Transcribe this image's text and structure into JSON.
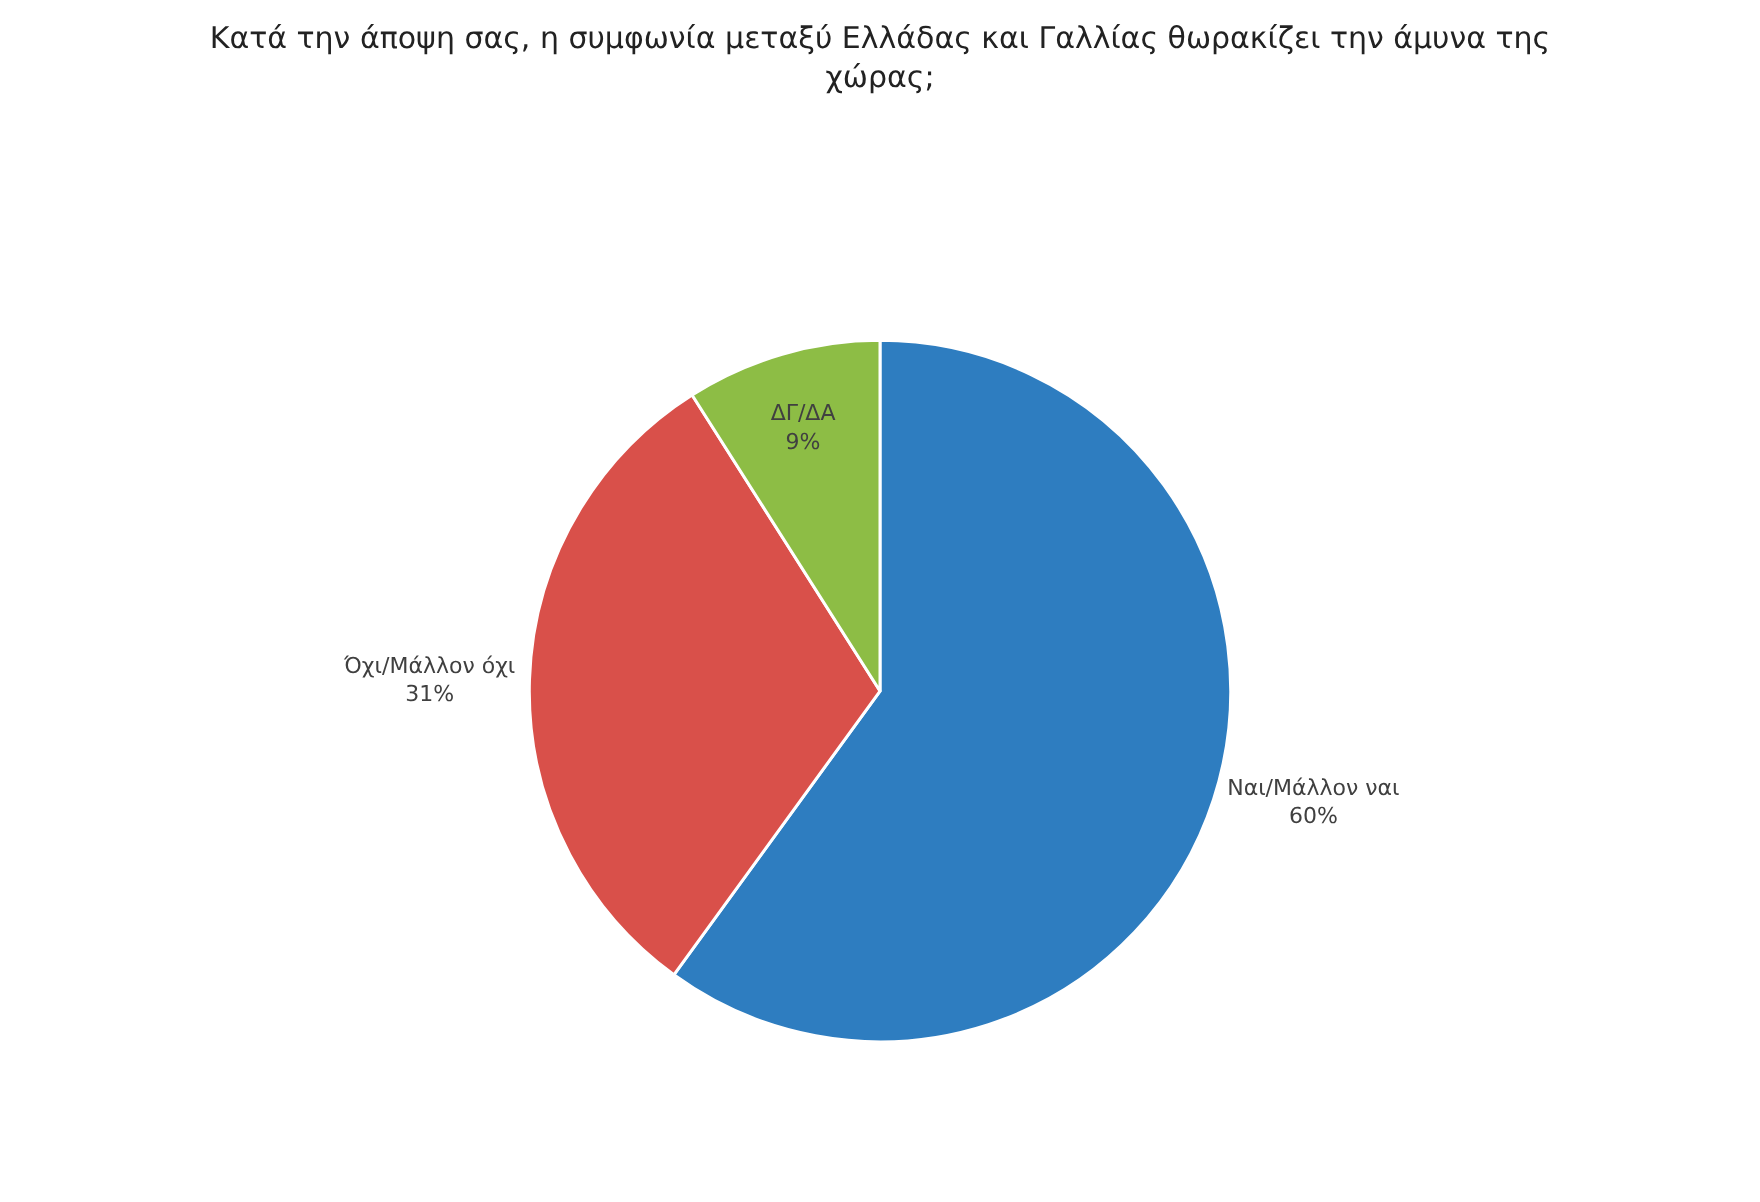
{
  "chart_data": {
    "type": "pie",
    "title": "Κατά την άποψη σας, η συμφωνία μεταξύ Ελλάδας και Γαλλίας θωρακίζει την άμυνα της χώρας;",
    "categories": [
      "Ναι/Μάλλον ναι",
      "Όχι/Μάλλον όχι",
      "ΔΓ/ΔΑ"
    ],
    "values": [
      60,
      31,
      9
    ],
    "colors": [
      "#2e7dc0",
      "#d9504a",
      "#8dbd45"
    ],
    "value_labels": [
      "60%",
      "31%",
      "9%"
    ],
    "legend": false
  }
}
